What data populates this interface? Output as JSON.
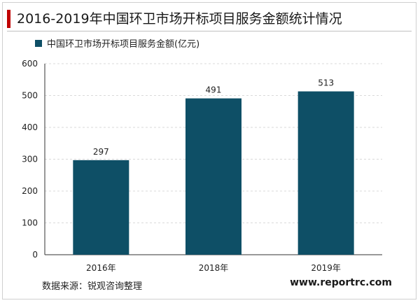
{
  "header": {
    "title": "2016-2019年中国环卫市场开标项目服务金额统计情况"
  },
  "footer": {
    "source": "数据来源：锐观咨询整理",
    "website": "www.reportrc.com"
  },
  "colors": {
    "bar": "#0e4f66",
    "accent": "#c00000",
    "grid": "#d9d9d9",
    "axis": "#333333"
  },
  "chart_data": {
    "type": "bar",
    "title": "",
    "xlabel": "",
    "ylabel": "",
    "categories": [
      "2016年",
      "2018年",
      "2019年"
    ],
    "series": [
      {
        "name": "中国环卫市场开标项目服务金额(亿元)",
        "values": [
          297,
          491,
          513
        ]
      }
    ],
    "ylim": [
      0,
      600
    ],
    "yticks": [
      0,
      100,
      200,
      300,
      400,
      500,
      600
    ],
    "grid": true,
    "legend": "top-left",
    "data_labels": true
  }
}
